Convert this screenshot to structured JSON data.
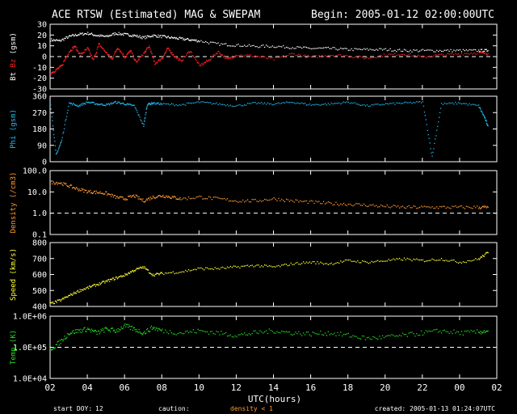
{
  "header": {
    "title": "ACE RTSW (Estimated) MAG & SWEPAM",
    "begin": "Begin: 2005-01-12 02:00:00UTC"
  },
  "footer": {
    "start_doy_label": "start DOY:",
    "start_doy_value": "12",
    "caution_label": "caution:",
    "caution_value": "density < 1",
    "created": "created: 2005-01-13 01:24:07UTC"
  },
  "colors": {
    "background": "#000000",
    "axes": "#ffffff",
    "bt": "#ffffff",
    "bz": "#ff2020",
    "phi": "#22bbee",
    "density": "#ff9933",
    "speed": "#ffff33",
    "temp": "#22dd22",
    "caution": "#ff9933"
  },
  "chart_data": [
    {
      "type": "scatter",
      "ylabel": "Bt Bz (gsm)",
      "ylabel_parts": [
        "Bt",
        "Bz",
        "(gsm)"
      ],
      "ylim": [
        -30,
        30
      ],
      "yticks": [
        "-30",
        "-20",
        "-10",
        "0",
        "10",
        "20",
        "30"
      ],
      "xlim": [
        2,
        26
      ],
      "xticks": [
        "02",
        "04",
        "06",
        "08",
        "10",
        "12",
        "14",
        "16",
        "18",
        "20",
        "22",
        "00",
        "02"
      ],
      "reference_lines": [
        0
      ],
      "series": [
        {
          "name": "Bt",
          "color_key": "bt",
          "x": [
            2.0,
            2.5,
            3.0,
            3.5,
            4.0,
            4.5,
            5.0,
            5.5,
            6.0,
            6.5,
            7.0,
            7.5,
            8.0,
            8.5,
            9.0,
            9.5,
            10.0,
            11.0,
            12.0,
            13.0,
            14.0,
            15.0,
            16.0,
            17.0,
            18.0,
            19.0,
            20.0,
            21.0,
            22.0,
            23.0,
            24.0,
            25.0,
            25.5
          ],
          "y": [
            16,
            15,
            19,
            21,
            22,
            20,
            19,
            22,
            21,
            20,
            18,
            20,
            19,
            18,
            17,
            16,
            15,
            12,
            11,
            10,
            10,
            9,
            8,
            8,
            7,
            7,
            7,
            6,
            6,
            6,
            6,
            6,
            6
          ]
        },
        {
          "name": "Bz",
          "color_key": "bz",
          "x": [
            2.0,
            2.3,
            2.6,
            3.0,
            3.3,
            3.6,
            4.0,
            4.3,
            4.6,
            5.0,
            5.3,
            5.6,
            6.0,
            6.3,
            6.6,
            7.0,
            7.3,
            7.6,
            8.0,
            8.3,
            8.6,
            9.0,
            9.5,
            10.0,
            10.5,
            11.0,
            11.5,
            12.0,
            13.0,
            14.0,
            15.0,
            16.0,
            17.0,
            18.0,
            19.0,
            20.0,
            21.0,
            22.0,
            23.0,
            24.0,
            25.0,
            25.5
          ],
          "y": [
            -15,
            -12,
            -8,
            5,
            10,
            2,
            8,
            -3,
            12,
            4,
            -2,
            9,
            0,
            6,
            -5,
            3,
            10,
            -6,
            -1,
            8,
            2,
            -4,
            6,
            -8,
            -3,
            5,
            -2,
            2,
            1,
            -2,
            3,
            0,
            2,
            1,
            -1,
            2,
            3,
            0,
            2,
            3,
            4,
            3
          ]
        }
      ]
    },
    {
      "type": "scatter",
      "ylabel": "Phi (gsm)",
      "ylim": [
        0,
        360
      ],
      "yticks": [
        "0",
        "90",
        "180",
        "270",
        "360"
      ],
      "xlim": [
        2,
        26
      ],
      "xticks": [
        "02",
        "04",
        "06",
        "08",
        "10",
        "12",
        "14",
        "16",
        "18",
        "20",
        "22",
        "00",
        "02"
      ],
      "series": [
        {
          "name": "Phi",
          "color_key": "phi",
          "x": [
            2.0,
            2.3,
            2.6,
            3.0,
            3.5,
            4.0,
            4.5,
            5.0,
            5.5,
            6.0,
            6.5,
            7.0,
            7.2,
            7.5,
            8.0,
            9.0,
            10.0,
            11.0,
            12.0,
            13.0,
            14.0,
            15.0,
            16.0,
            17.0,
            18.0,
            19.0,
            20.0,
            21.0,
            22.0,
            22.5,
            23.0,
            24.0,
            25.0,
            25.3,
            25.5
          ],
          "y": [
            320,
            40,
            120,
            325,
            310,
            330,
            320,
            315,
            330,
            320,
            310,
            200,
            318,
            325,
            320,
            315,
            330,
            320,
            310,
            325,
            320,
            330,
            315,
            320,
            330,
            310,
            320,
            325,
            330,
            30,
            320,
            325,
            310,
            250,
            200
          ]
        }
      ]
    },
    {
      "type": "scatter",
      "ylabel": "Density (/cm3)",
      "ylim": [
        0.1,
        100
      ],
      "scale": "log",
      "yticks": [
        "0.1",
        "1.0",
        "10.0",
        "100.0"
      ],
      "xlim": [
        2,
        26
      ],
      "xticks": [
        "02",
        "04",
        "06",
        "08",
        "10",
        "12",
        "14",
        "16",
        "18",
        "20",
        "22",
        "00",
        "02"
      ],
      "reference_lines": [
        1
      ],
      "series": [
        {
          "name": "Density",
          "color_key": "density",
          "x": [
            2.0,
            2.5,
            3.0,
            3.5,
            4.0,
            4.5,
            5.0,
            5.5,
            6.0,
            6.5,
            7.0,
            7.5,
            8.0,
            8.5,
            9.0,
            10.0,
            11.0,
            12.0,
            13.0,
            14.0,
            15.0,
            16.0,
            17.0,
            18.0,
            19.0,
            20.0,
            21.0,
            22.0,
            23.0,
            24.0,
            25.0,
            25.5
          ],
          "y": [
            30,
            28,
            20,
            14,
            11,
            10,
            9,
            6,
            5,
            7,
            4,
            6,
            7,
            6,
            5,
            6,
            5,
            4,
            4,
            5,
            4,
            3.5,
            3,
            2.8,
            2.5,
            2.2,
            2,
            2,
            2,
            2,
            2,
            2
          ]
        }
      ]
    },
    {
      "type": "scatter",
      "ylabel": "Speed (km/s)",
      "ylim": [
        400,
        800
      ],
      "yticks": [
        "400",
        "500",
        "600",
        "700",
        "800"
      ],
      "xlim": [
        2,
        26
      ],
      "xticks": [
        "02",
        "04",
        "06",
        "08",
        "10",
        "12",
        "14",
        "16",
        "18",
        "20",
        "22",
        "00",
        "02"
      ],
      "series": [
        {
          "name": "Speed",
          "color_key": "speed",
          "x": [
            2.0,
            2.5,
            3.0,
            3.5,
            4.0,
            4.5,
            5.0,
            5.5,
            6.0,
            6.5,
            7.0,
            7.5,
            8.0,
            9.0,
            10.0,
            11.0,
            12.0,
            13.0,
            14.0,
            15.0,
            16.0,
            17.0,
            18.0,
            19.0,
            20.0,
            21.0,
            22.0,
            23.0,
            24.0,
            25.0,
            25.5
          ],
          "y": [
            420,
            440,
            470,
            500,
            520,
            540,
            560,
            580,
            600,
            630,
            650,
            600,
            610,
            620,
            640,
            640,
            650,
            660,
            650,
            670,
            680,
            670,
            690,
            680,
            690,
            700,
            690,
            700,
            680,
            700,
            740
          ]
        }
      ]
    },
    {
      "type": "scatter",
      "ylabel": "Temp (K)",
      "ylim": [
        10000,
        1000000
      ],
      "scale": "log",
      "yticks": [
        "1.0E+04",
        "1.0E+05",
        "1.0E+06"
      ],
      "xlim": [
        2,
        26
      ],
      "xticks": [
        "02",
        "04",
        "06",
        "08",
        "10",
        "12",
        "14",
        "16",
        "18",
        "20",
        "22",
        "00",
        "02"
      ],
      "xlabel": "UTC(hours)",
      "reference_lines": [
        100000
      ],
      "series": [
        {
          "name": "Temp",
          "color_key": "temp",
          "x": [
            2.0,
            2.5,
            3.0,
            3.5,
            4.0,
            4.5,
            5.0,
            5.5,
            6.0,
            6.5,
            7.0,
            7.5,
            8.0,
            9.0,
            10.0,
            11.0,
            12.0,
            13.0,
            14.0,
            15.0,
            16.0,
            17.0,
            18.0,
            19.0,
            20.0,
            21.0,
            22.0,
            23.0,
            24.0,
            25.0,
            25.5
          ],
          "y": [
            90000,
            150000,
            300000,
            350000,
            400000,
            300000,
            400000,
            350000,
            500000,
            400000,
            300000,
            450000,
            350000,
            300000,
            350000,
            300000,
            250000,
            300000,
            350000,
            300000,
            280000,
            300000,
            250000,
            200000,
            220000,
            250000,
            300000,
            350000,
            300000,
            320000,
            350000
          ]
        }
      ]
    }
  ]
}
